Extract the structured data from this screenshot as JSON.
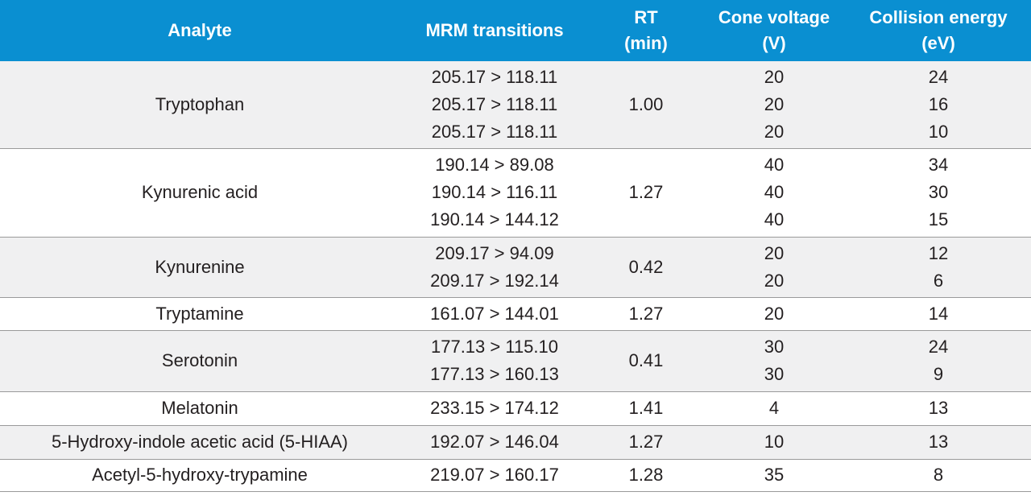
{
  "header": {
    "analyte": [
      "Analyte"
    ],
    "mrm": [
      "MRM transitions"
    ],
    "rt": [
      "RT",
      "(min)"
    ],
    "cone": [
      "Cone voltage",
      "(V)"
    ],
    "ce": [
      "Collision energy",
      "(eV)"
    ]
  },
  "rows": [
    {
      "analyte": "Tryptophan",
      "mrm": [
        "205.17 > 118.11",
        "205.17 > 118.11",
        "205.17 > 118.11"
      ],
      "rt": "1.00",
      "cone": [
        "20",
        "20",
        "20"
      ],
      "ce": [
        "24",
        "16",
        "10"
      ]
    },
    {
      "analyte": "Kynurenic acid",
      "mrm": [
        "190.14 > 89.08",
        "190.14 > 116.11",
        "190.14 > 144.12"
      ],
      "rt": "1.27",
      "cone": [
        "40",
        "40",
        "40"
      ],
      "ce": [
        "34",
        "30",
        "15"
      ]
    },
    {
      "analyte": "Kynurenine",
      "mrm": [
        "209.17 > 94.09",
        "209.17 > 192.14"
      ],
      "rt": "0.42",
      "cone": [
        "20",
        "20"
      ],
      "ce": [
        "12",
        "6"
      ]
    },
    {
      "analyte": "Tryptamine",
      "mrm": [
        "161.07 > 144.01"
      ],
      "rt": "1.27",
      "cone": [
        "20"
      ],
      "ce": [
        "14"
      ]
    },
    {
      "analyte": "Serotonin",
      "mrm": [
        "177.13 > 115.10",
        "177.13 > 160.13"
      ],
      "rt": "0.41",
      "cone": [
        "30",
        "30"
      ],
      "ce": [
        "24",
        "9"
      ]
    },
    {
      "analyte": "Melatonin",
      "mrm": [
        "233.15 > 174.12"
      ],
      "rt": "1.41",
      "cone": [
        "4"
      ],
      "ce": [
        "13"
      ]
    },
    {
      "analyte": "5-Hydroxy-indole acetic acid (5-HIAA)",
      "mrm": [
        "192.07 > 146.04"
      ],
      "rt": "1.27",
      "cone": [
        "10"
      ],
      "ce": [
        "13"
      ]
    },
    {
      "analyte": "Acetyl-5-hydroxy-trypamine",
      "mrm": [
        "219.07 > 160.17"
      ],
      "rt": "1.28",
      "cone": [
        "35"
      ],
      "ce": [
        "8"
      ]
    }
  ]
}
